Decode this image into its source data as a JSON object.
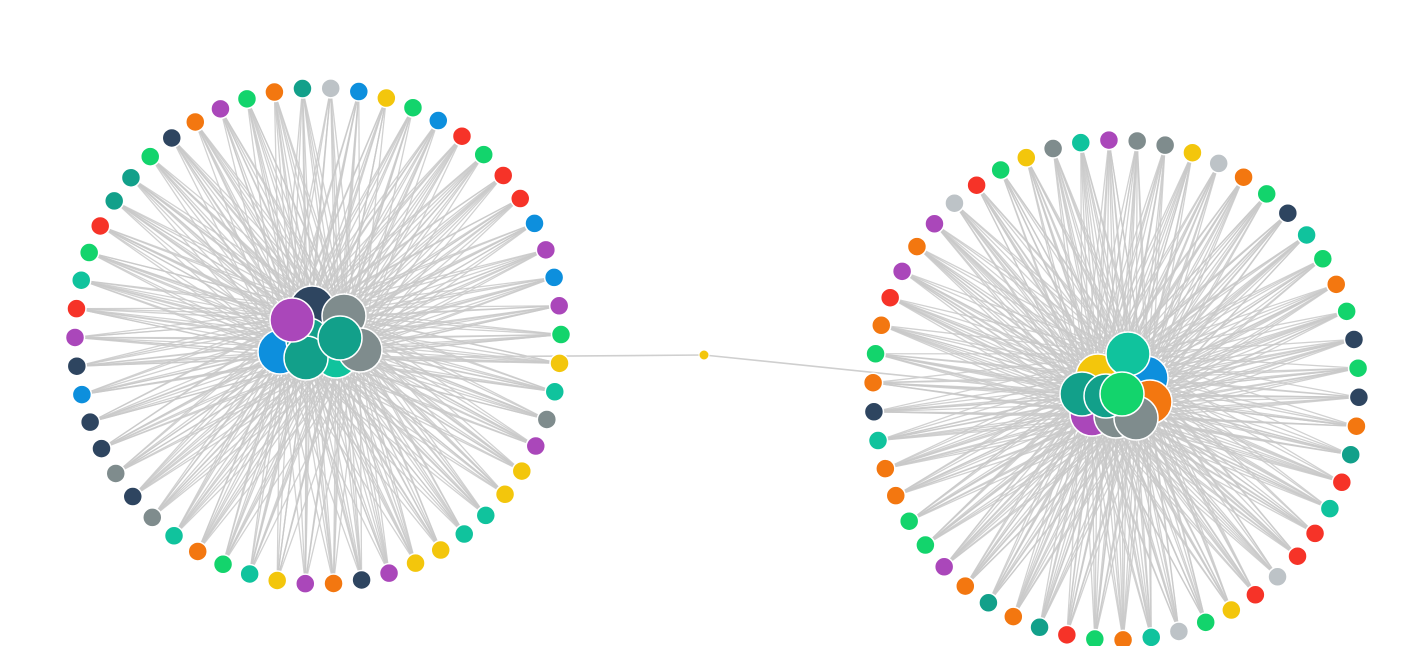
{
  "palette": {
    "red": "#f63328",
    "orange": "#f37710",
    "yellow": "#f3c60c",
    "green": "#13d46c",
    "teal": "#10c39d",
    "darkteal": "#12a08a",
    "blue": "#0d8fdd",
    "purple": "#aa47ba",
    "navy": "#2e4560",
    "gray": "#7f8c8d",
    "silver": "#bdc3c7"
  },
  "edge_color": "#c9c9c9",
  "clusters": [
    {
      "name": "cluster-left",
      "hubs": [
        "navy",
        "gray",
        "blue",
        "darkteal",
        "teal",
        "gray",
        "darkteal",
        "darkteal",
        "purple"
      ],
      "ring": [
        "silver",
        "blue",
        "yellow",
        "green",
        "blue",
        "red",
        "green",
        "red",
        "red",
        "blue",
        "purple",
        "blue",
        "purple",
        "green",
        "yellow",
        "teal",
        "gray",
        "purple",
        "yellow",
        "yellow",
        "teal",
        "teal",
        "yellow",
        "yellow",
        "purple",
        "navy",
        "orange",
        "purple",
        "yellow",
        "teal",
        "green",
        "orange",
        "teal",
        "gray",
        "navy",
        "gray",
        "navy",
        "navy",
        "blue",
        "navy",
        "purple",
        "red",
        "teal",
        "green",
        "red",
        "darkteal",
        "darkteal",
        "green",
        "navy",
        "orange",
        "purple",
        "green",
        "orange",
        "darkteal"
      ]
    },
    {
      "name": "cluster-right",
      "hubs": [
        "yellow",
        "blue",
        "orange",
        "purple",
        "gray",
        "gray",
        "darkteal",
        "teal",
        "darkteal",
        "green"
      ],
      "ring": [
        "gray",
        "gray",
        "yellow",
        "silver",
        "orange",
        "green",
        "navy",
        "teal",
        "green",
        "orange",
        "green",
        "navy",
        "green",
        "navy",
        "orange",
        "darkteal",
        "red",
        "teal",
        "red",
        "red",
        "silver",
        "red",
        "yellow",
        "green",
        "silver",
        "teal",
        "orange",
        "green",
        "red",
        "darkteal",
        "orange",
        "darkteal",
        "orange",
        "purple",
        "green",
        "green",
        "orange",
        "orange",
        "teal",
        "navy",
        "orange",
        "green",
        "orange",
        "red",
        "purple",
        "orange",
        "purple",
        "silver",
        "red",
        "green",
        "yellow",
        "gray",
        "teal",
        "purple"
      ]
    }
  ],
  "bridge_node": {
    "color": "yellow"
  }
}
